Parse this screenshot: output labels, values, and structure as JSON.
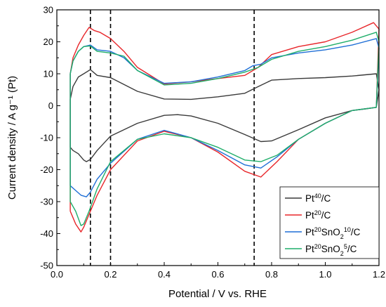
{
  "chart_data": {
    "type": "line",
    "xlabel": "Potential / V vs. RHE",
    "ylabel": "Current density / A g⁻¹ (Pt)",
    "xlim": [
      0.0,
      1.2
    ],
    "ylim": [
      -50,
      30
    ],
    "xticks": [
      "0.0",
      "0.2",
      "0.4",
      "0.6",
      "0.8",
      "1.0",
      "1.2"
    ],
    "yticks": [
      "-50",
      "-40",
      "-30",
      "-20",
      "-10",
      "0",
      "10",
      "20",
      "30"
    ],
    "legend_position": "bottom-right",
    "reference_lines_x": [
      0.125,
      0.2,
      0.735
    ],
    "series": [
      {
        "name": "Pt40/C",
        "legend_parts": [
          {
            "t": "Pt"
          },
          {
            "t": "40",
            "sup": true
          },
          {
            "t": "/C"
          }
        ],
        "color": "#3a3a3a",
        "x": [
          0.05,
          0.05,
          0.06,
          0.08,
          0.1,
          0.125,
          0.15,
          0.2,
          0.3,
          0.4,
          0.5,
          0.6,
          0.7,
          0.75,
          0.8,
          0.9,
          1.0,
          1.1,
          1.19,
          1.2,
          1.19,
          1.15,
          1.1,
          1.0,
          0.9,
          0.8,
          0.76,
          0.7,
          0.6,
          0.5,
          0.45,
          0.4,
          0.3,
          0.2,
          0.15,
          0.125,
          0.11,
          0.1,
          0.08,
          0.06,
          0.05,
          0.05
        ],
        "y": [
          -13,
          2,
          6,
          9,
          10,
          11.3,
          9.5,
          8.8,
          4.5,
          2.1,
          2.0,
          2.8,
          3.9,
          6,
          8,
          8.5,
          8.8,
          9.3,
          10,
          5,
          -0.5,
          -1,
          -1.5,
          -3.8,
          -7.5,
          -11,
          -11.2,
          -9,
          -5.5,
          -3.2,
          -2.8,
          -3,
          -5.5,
          -9.5,
          -14,
          -16.8,
          -17.5,
          -17,
          -15,
          -14,
          -13,
          -13
        ]
      },
      {
        "name": "Pt20/C",
        "legend_parts": [
          {
            "t": "Pt"
          },
          {
            "t": "20",
            "sup": true
          },
          {
            "t": "/C"
          }
        ],
        "color": "#e8262a",
        "x": [
          0.05,
          0.05,
          0.06,
          0.08,
          0.1,
          0.12,
          0.14,
          0.16,
          0.2,
          0.25,
          0.3,
          0.4,
          0.5,
          0.6,
          0.7,
          0.75,
          0.8,
          0.9,
          1.0,
          1.1,
          1.18,
          1.2,
          1.19,
          1.1,
          1.0,
          0.9,
          0.82,
          0.76,
          0.7,
          0.6,
          0.5,
          0.4,
          0.3,
          0.2,
          0.15,
          0.12,
          0.1,
          0.09,
          0.07,
          0.06,
          0.05,
          0.05
        ],
        "y": [
          -33,
          10,
          15,
          19,
          22,
          24.5,
          23.5,
          23,
          21,
          17,
          12,
          6.8,
          7.5,
          8.5,
          9.5,
          12,
          16,
          18.5,
          20,
          23,
          26,
          24,
          -0.5,
          -1.5,
          -5.5,
          -10.5,
          -17.5,
          -22.3,
          -20.5,
          -14.5,
          -10,
          -8,
          -11,
          -20,
          -28,
          -34,
          -38,
          -39.5,
          -37,
          -35,
          -33,
          -33
        ]
      },
      {
        "name": "Pt20SnO210/C",
        "legend_parts": [
          {
            "t": "Pt"
          },
          {
            "t": "20",
            "sup": true
          },
          {
            "t": "SnO"
          },
          {
            "t": "2",
            "sub": true
          },
          {
            "t": "10",
            "sup": true
          },
          {
            "t": "/C"
          }
        ],
        "color": "#1f6fd6",
        "x": [
          0.05,
          0.05,
          0.06,
          0.08,
          0.1,
          0.125,
          0.15,
          0.2,
          0.25,
          0.3,
          0.4,
          0.5,
          0.6,
          0.7,
          0.73,
          0.76,
          0.8,
          0.9,
          1.0,
          1.1,
          1.19,
          1.2,
          1.19,
          1.1,
          1.0,
          0.9,
          0.82,
          0.76,
          0.7,
          0.6,
          0.5,
          0.4,
          0.3,
          0.2,
          0.15,
          0.125,
          0.11,
          0.09,
          0.07,
          0.05,
          0.05
        ],
        "y": [
          -24,
          10,
          14,
          17,
          18.5,
          19,
          17.5,
          17,
          15,
          11,
          7,
          7.5,
          9,
          11,
          12.5,
          13,
          15,
          16.5,
          17.5,
          19,
          21,
          18,
          -0.5,
          -1.5,
          -5.5,
          -10.5,
          -16,
          -19.5,
          -18.5,
          -14,
          -10,
          -7.7,
          -10.5,
          -18,
          -23,
          -27,
          -28.5,
          -28,
          -26.5,
          -25,
          -24
        ]
      },
      {
        "name": "Pt20SnO25/C",
        "legend_parts": [
          {
            "t": "Pt"
          },
          {
            "t": "20",
            "sup": true
          },
          {
            "t": "SnO"
          },
          {
            "t": "2",
            "sub": true
          },
          {
            "t": "5",
            "sup": true
          },
          {
            "t": "/C"
          }
        ],
        "color": "#1fae6a",
        "x": [
          0.05,
          0.05,
          0.06,
          0.08,
          0.1,
          0.125,
          0.15,
          0.2,
          0.25,
          0.3,
          0.4,
          0.5,
          0.6,
          0.7,
          0.75,
          0.8,
          0.9,
          1.0,
          1.1,
          1.19,
          1.2,
          1.19,
          1.1,
          1.0,
          0.9,
          0.82,
          0.76,
          0.7,
          0.6,
          0.5,
          0.4,
          0.3,
          0.2,
          0.15,
          0.12,
          0.1,
          0.09,
          0.07,
          0.05,
          0.05
        ],
        "y": [
          -29,
          10,
          14,
          17,
          18.5,
          18.7,
          17,
          16.5,
          15.5,
          11,
          6.5,
          7,
          8.5,
          10.5,
          12,
          14.5,
          17,
          18.5,
          20.5,
          23,
          20,
          -0.5,
          -1.5,
          -5.5,
          -10.5,
          -15.5,
          -17.5,
          -17,
          -13,
          -10,
          -8.8,
          -10.5,
          -17.5,
          -26,
          -33,
          -37,
          -37.5,
          -33,
          -30,
          -29
        ]
      }
    ]
  }
}
